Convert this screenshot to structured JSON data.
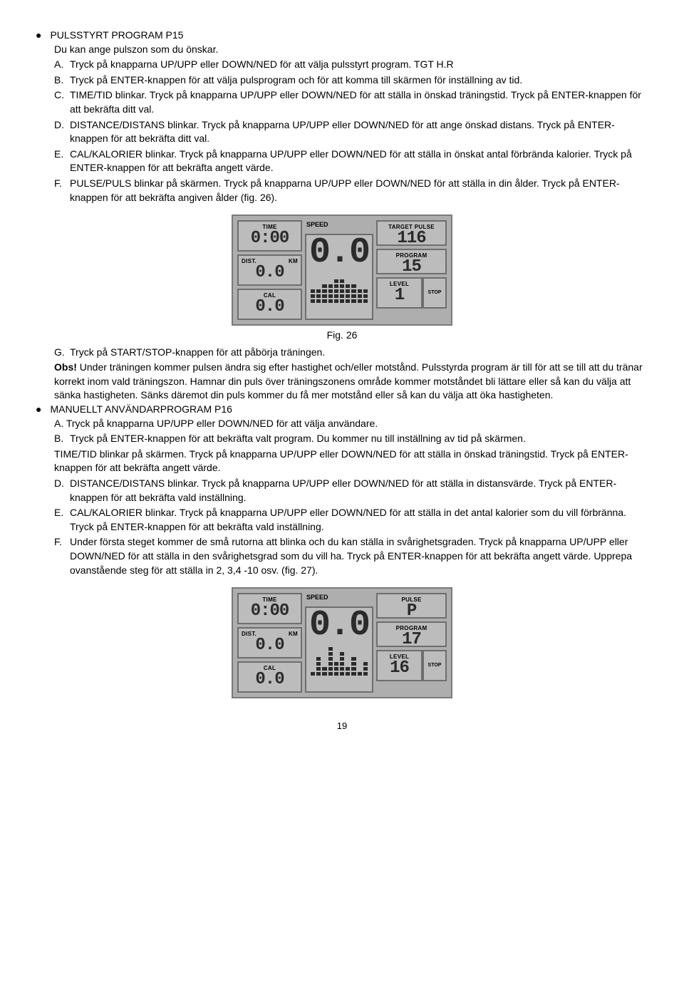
{
  "section1": {
    "title": "PULSSTYRT PROGRAM P15",
    "intro": "Du kan ange pulszon som du önskar.",
    "items": [
      {
        "letter": "A.",
        "text": "Tryck på knapparna UP/UPP eller DOWN/NED för att välja pulsstyrt program. TGT H.R"
      },
      {
        "letter": "B.",
        "text": "Tryck på ENTER-knappen för att välja pulsprogram och för att komma till skärmen för inställning av tid."
      },
      {
        "letter": "C.",
        "text": "TIME/TID blinkar. Tryck på knapparna UP/UPP eller DOWN/NED för att ställa in önskad träningstid. Tryck på ENTER-knappen för att bekräfta ditt val."
      },
      {
        "letter": "D.",
        "text": "DISTANCE/DISTANS blinkar. Tryck på knapparna UP/UPP eller DOWN/NED för att ange önskad distans. Tryck på ENTER-knappen för att bekräfta ditt val."
      },
      {
        "letter": "E.",
        "text": "CAL/KALORIER blinkar. Tryck på knapparna UP/UPP eller DOWN/NED för att ställa in önskat antal förbrända kalorier. Tryck på ENTER-knappen för att bekräfta angett värde."
      },
      {
        "letter": "F.",
        "text": "PULSE/PULS blinkar på skärmen. Tryck på knapparna UP/UPP eller DOWN/NED för att ställa in din ålder. Tryck på ENTER-knappen för att bekräfta angiven ålder (fig. 26)."
      }
    ]
  },
  "fig26": {
    "caption": "Fig. 26",
    "time_label": "TIME",
    "time_val": "0:00",
    "dist_label": "DIST.",
    "km_label": "KM",
    "dist_val": "0.0",
    "cal_label": "CAL",
    "cal_val": "0.0",
    "speed_label": "SPEED",
    "speed_val": "0.0",
    "tp_label": "TARGET PULSE",
    "tp_val": "116",
    "prog_label": "PROGRAM",
    "prog_val": "15",
    "level_label": "LEVEL",
    "level_val": "1",
    "stop": "STOP",
    "bars": [
      3,
      3,
      4,
      4,
      5,
      5,
      4,
      4,
      3,
      3
    ]
  },
  "afterFig26": {
    "g": {
      "letter": "G.",
      "text": "Tryck på START/STOP-knappen för att påbörja träningen."
    },
    "obs_label": "Obs!",
    "obs_text": " Under träningen kommer pulsen ändra sig efter hastighet och/eller motstånd. Pulsstyrda program är till för att se till att du tränar korrekt inom vald träningszon. Hamnar din puls över träningszonens område kommer motståndet bli lättare eller så kan du välja att sänka hastigheten. Sänks däremot din puls kommer du få mer motstånd eller så kan du välja att öka hastigheten."
  },
  "section2": {
    "title": "MANUELLT ANVÄNDARPROGRAM P16",
    "a_line": "A. Tryck på knapparna UP/UPP eller DOWN/NED för att välja användare.",
    "items": [
      {
        "letter": "B.",
        "text": "Tryck på ENTER-knappen för att bekräfta valt program. Du kommer nu till inställning av tid på skärmen."
      }
    ],
    "b_extra": "TIME/TID blinkar på skärmen. Tryck på knapparna UP/UPP eller DOWN/NED för att ställa in önskad träningstid. Tryck på ENTER-knappen för att bekräfta angett värde.",
    "items2": [
      {
        "letter": "D.",
        "text": "DISTANCE/DISTANS blinkar. Tryck på knapparna UP/UPP eller DOWN/NED för att ställa in distansvärde. Tryck på ENTER-knappen för att bekräfta vald inställning."
      },
      {
        "letter": "E.",
        "text": "CAL/KALORIER blinkar. Tryck på knapparna UP/UPP eller DOWN/NED för att ställa in det antal kalorier som du vill förbränna. Tryck på ENTER-knappen för att bekräfta vald inställning."
      },
      {
        "letter": "F.",
        "text": "Under första steget kommer de små rutorna att blinka och du kan ställa in svårighetsgraden. Tryck på knapparna UP/UPP eller DOWN/NED för att ställa in den svårighetsgrad som du vill ha. Tryck på ENTER-knappen för att bekräfta angett värde. Upprepa ovanstående steg för att ställa in 2, 3,4 -10 osv. (fig. 27)."
      }
    ]
  },
  "fig27": {
    "time_label": "TIME",
    "time_val": "0:00",
    "dist_label": "DIST.",
    "km_label": "KM",
    "dist_val": "0.0",
    "cal_label": "CAL",
    "cal_val": "0.0",
    "speed_label": "SPEED",
    "speed_val": "0.0",
    "pulse_label": "PULSE",
    "pulse_val": "P",
    "prog_label": "PROGRAM",
    "prog_val": "17",
    "level_label": "LEVEL",
    "level_val": "16",
    "stop": "STOP",
    "bars": [
      1,
      4,
      2,
      6,
      3,
      5,
      2,
      4,
      1,
      3
    ]
  },
  "page": "19"
}
